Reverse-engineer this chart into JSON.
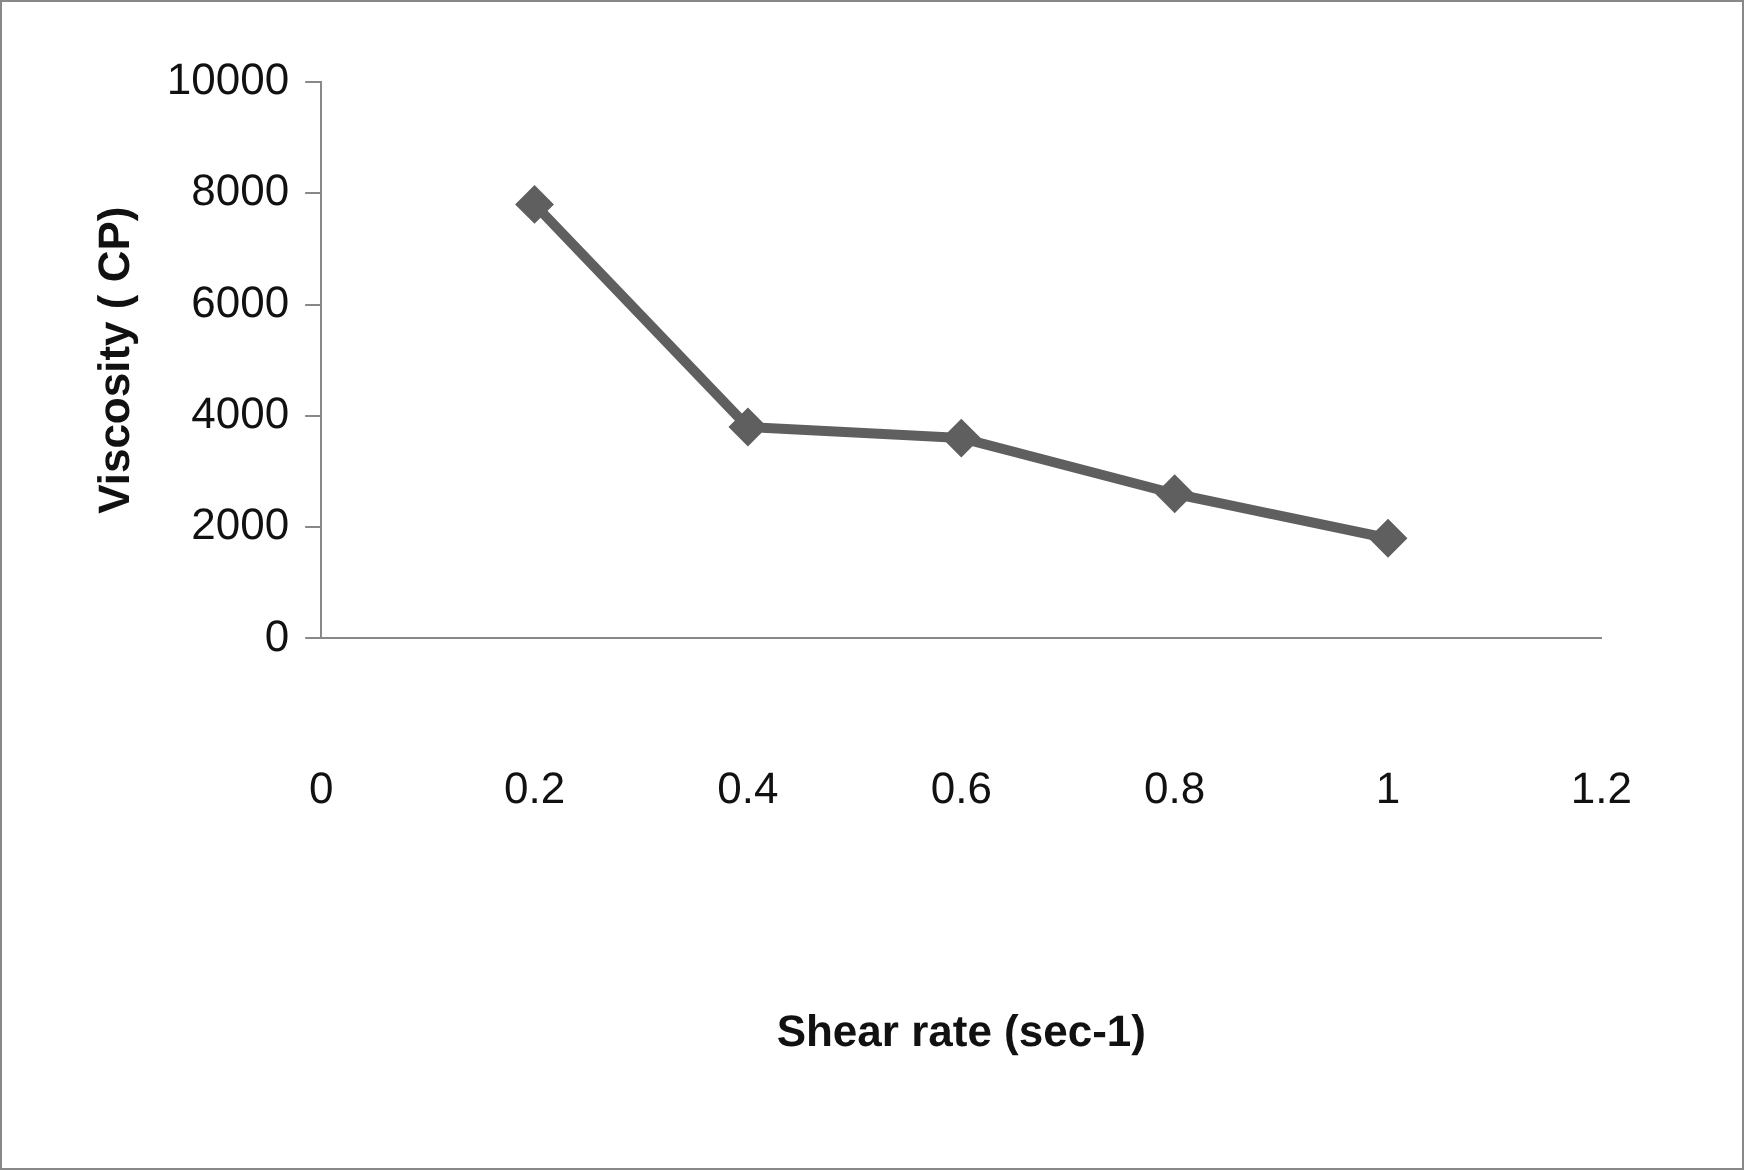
{
  "chart_data": {
    "type": "line",
    "xlabel": "Shear rate (sec-1)",
    "ylabel": "Viscosity ( CP)",
    "x": [
      0.2,
      0.4,
      0.6,
      0.8,
      1
    ],
    "series": [
      {
        "color": "#5f5f5f",
        "values": [
          7800,
          3800,
          3600,
          2600,
          1800
        ]
      }
    ],
    "xlim": [
      0,
      1.2
    ],
    "xticks": [
      0,
      0.2,
      0.4,
      0.6,
      0.8,
      1,
      1.2
    ],
    "ylim": [
      0,
      10000
    ],
    "yticks": [
      0,
      2000,
      4000,
      6000,
      8000,
      10000
    ],
    "grid": false,
    "legend": false,
    "marker": "diamond",
    "line_style": "solid"
  }
}
